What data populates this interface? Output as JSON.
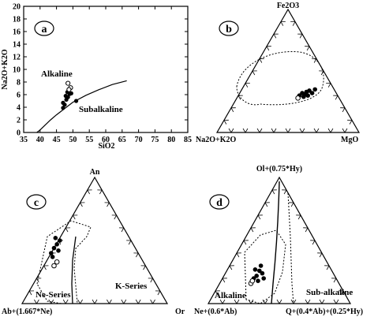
{
  "chart_data": [
    {
      "panel": "a",
      "type": "scatter",
      "xlabel": "SiO2",
      "ylabel": "Na2O+K2O",
      "xlim": [
        35,
        85
      ],
      "ylim": [
        0,
        20
      ],
      "xticks": [
        "35",
        "40",
        "45",
        "50",
        "55",
        "60",
        "65",
        "70",
        "75",
        "80",
        "85"
      ],
      "yticks": [
        "0",
        "2",
        "4",
        "6",
        "8",
        "10",
        "12",
        "14",
        "16",
        "18",
        "20"
      ],
      "field_labels": [
        "Alkaline",
        "Subalkaline"
      ],
      "divider_line": {
        "x": [
          39,
          40,
          43.2,
          45,
          48,
          50,
          54,
          58,
          62,
          66.4
        ],
        "y": [
          0,
          0.4,
          2,
          2.8,
          4,
          4.8,
          5.9,
          6.8,
          7.6,
          8.2
        ]
      },
      "samples_filled": {
        "x": [
          47,
          47.5,
          48,
          48.5,
          49,
          47.8,
          48.3,
          49.5,
          47,
          51
        ],
        "y": [
          3.9,
          4.4,
          5.2,
          5.6,
          6.1,
          5.8,
          6.4,
          6.2,
          4.7,
          5
        ]
      },
      "samples_open": {
        "x": [
          48.5,
          49.3,
          48.8
        ],
        "y": [
          7.8,
          7.1,
          6.8
        ]
      }
    },
    {
      "panel": "b",
      "type": "scatter",
      "apex_labels": [
        "Fe2O3",
        "Na2O+K2O",
        "MgO"
      ],
      "samples_filled": {
        "x": [
          0.58,
          0.6,
          0.62,
          0.63,
          0.65,
          0.67,
          0.69,
          0.61,
          0.64
        ],
        "y": [
          0.3,
          0.32,
          0.31,
          0.33,
          0.34,
          0.32,
          0.35,
          0.29,
          0.3
        ]
      },
      "samples_open": {
        "x": [
          0.57
        ],
        "y": [
          0.28
        ]
      }
    },
    {
      "panel": "c",
      "type": "scatter",
      "apex_labels": [
        "An",
        "Ab+(1.667*Ne)",
        "Or"
      ],
      "field_labels": [
        "Ne-Series",
        "K-Series"
      ],
      "samples_filled": {
        "x": [
          0.2,
          0.22,
          0.24,
          0.21,
          0.25,
          0.26,
          0.23
        ],
        "y": [
          0.4,
          0.44,
          0.47,
          0.37,
          0.42,
          0.5,
          0.52
        ]
      },
      "samples_open": {
        "x": [
          0.22,
          0.24
        ],
        "y": [
          0.3,
          0.33
        ]
      }
    },
    {
      "panel": "d",
      "type": "scatter",
      "apex_labels": [
        "Ol+(0.75*Hy)",
        "Ne+(0.6*Ab)",
        "Q+(0.4*Ab)+(0.25*Hy)"
      ],
      "field_labels": [
        "Alkaline",
        "Sub-alkaline"
      ],
      "samples_filled": {
        "x": [
          0.32,
          0.34,
          0.36,
          0.38,
          0.33,
          0.37,
          0.35,
          0.39
        ],
        "y": [
          0.2,
          0.22,
          0.26,
          0.24,
          0.27,
          0.3,
          0.18,
          0.2
        ]
      },
      "samples_open": {
        "x": [
          0.3,
          0.31
        ],
        "y": [
          0.16,
          0.18
        ]
      }
    }
  ]
}
